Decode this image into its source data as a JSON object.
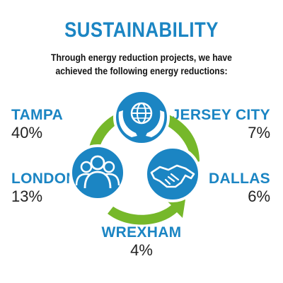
{
  "title": "SUSTAINABILITY",
  "subtitle_line1": "Through energy reduction projects, we have",
  "subtitle_line2": "achieved the following energy reductions:",
  "cities": {
    "tampa": {
      "name": "TAMPA",
      "percent": "40%"
    },
    "london": {
      "name": "LONDON",
      "percent": "13%"
    },
    "jersey": {
      "name": "JERSEY CITY",
      "percent": "7%"
    },
    "dallas": {
      "name": "DALLAS",
      "percent": "6%"
    },
    "wrexham": {
      "name": "WREXHAM",
      "percent": "4%"
    }
  },
  "colors": {
    "blue": "#1b85c3",
    "green": "#76b82a",
    "text": "#222222"
  },
  "icons": [
    "hands-globe-icon",
    "people-group-icon",
    "handshake-icon"
  ]
}
